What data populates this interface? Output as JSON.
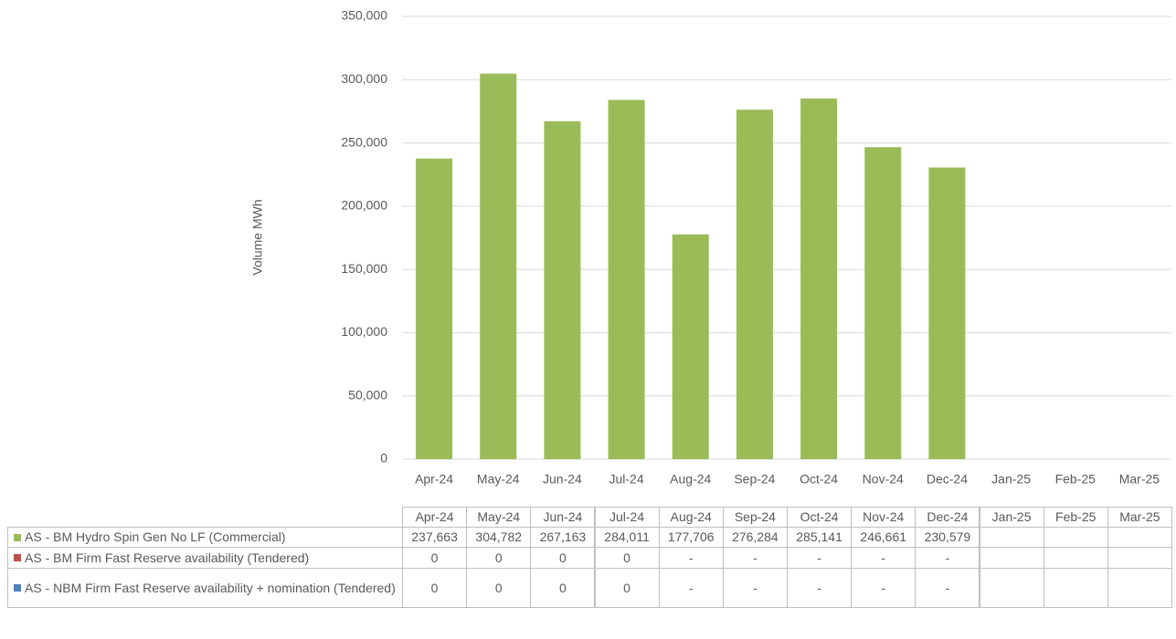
{
  "chart_data": {
    "type": "bar",
    "y_label": "Volume MWh",
    "categories": [
      "Apr-24",
      "May-24",
      "Jun-24",
      "Jul-24",
      "Aug-24",
      "Sep-24",
      "Oct-24",
      "Nov-24",
      "Dec-24",
      "Jan-25",
      "Feb-25",
      "Mar-25"
    ],
    "series": [
      {
        "name": "AS - BM Hydro Spin Gen No LF (Commercial)",
        "color": "#9bbb59",
        "values": [
          237663,
          304782,
          267163,
          284011,
          177706,
          276284,
          285141,
          246661,
          230579,
          null,
          null,
          null
        ],
        "value_labels": [
          "237,663",
          "304,782",
          "267,163",
          "284,011",
          "177,706",
          "276,284",
          "285,141",
          "246,661",
          "230,579",
          null,
          null,
          null
        ]
      },
      {
        "name": "AS - BM Firm Fast Reserve availability (Tendered)",
        "color": "#c0504d",
        "values": [
          0,
          0,
          0,
          0,
          null,
          null,
          null,
          null,
          null,
          null,
          null,
          null
        ],
        "value_labels": [
          null,
          null,
          null,
          null,
          "-",
          "-",
          "-",
          "-",
          "-",
          null,
          null,
          null
        ]
      },
      {
        "name": "AS - NBM Firm Fast Reserve availability + nomination (Tendered)",
        "color": "#4f81bd",
        "values": [
          0,
          0,
          0,
          0,
          null,
          null,
          null,
          null,
          null,
          null,
          null,
          null
        ],
        "value_labels": [
          null,
          null,
          null,
          null,
          "-",
          "-",
          "-",
          "-",
          "-",
          null,
          null,
          null
        ]
      }
    ],
    "ylim": [
      0,
      350000
    ],
    "yticks": [
      0,
      {
        "value": 50000,
        "label": "50,000"
      },
      {
        "value": 100000,
        "label": "100,000"
      },
      {
        "value": 150000,
        "label": "150,000"
      },
      {
        "value": 200000,
        "label": "200,000"
      },
      {
        "value": 250000,
        "label": "250,000"
      },
      {
        "value": 300000,
        "label": "300,000"
      },
      {
        "value": 350000,
        "label": "350,000"
      }
    ],
    "grid": true,
    "data_table": true
  }
}
